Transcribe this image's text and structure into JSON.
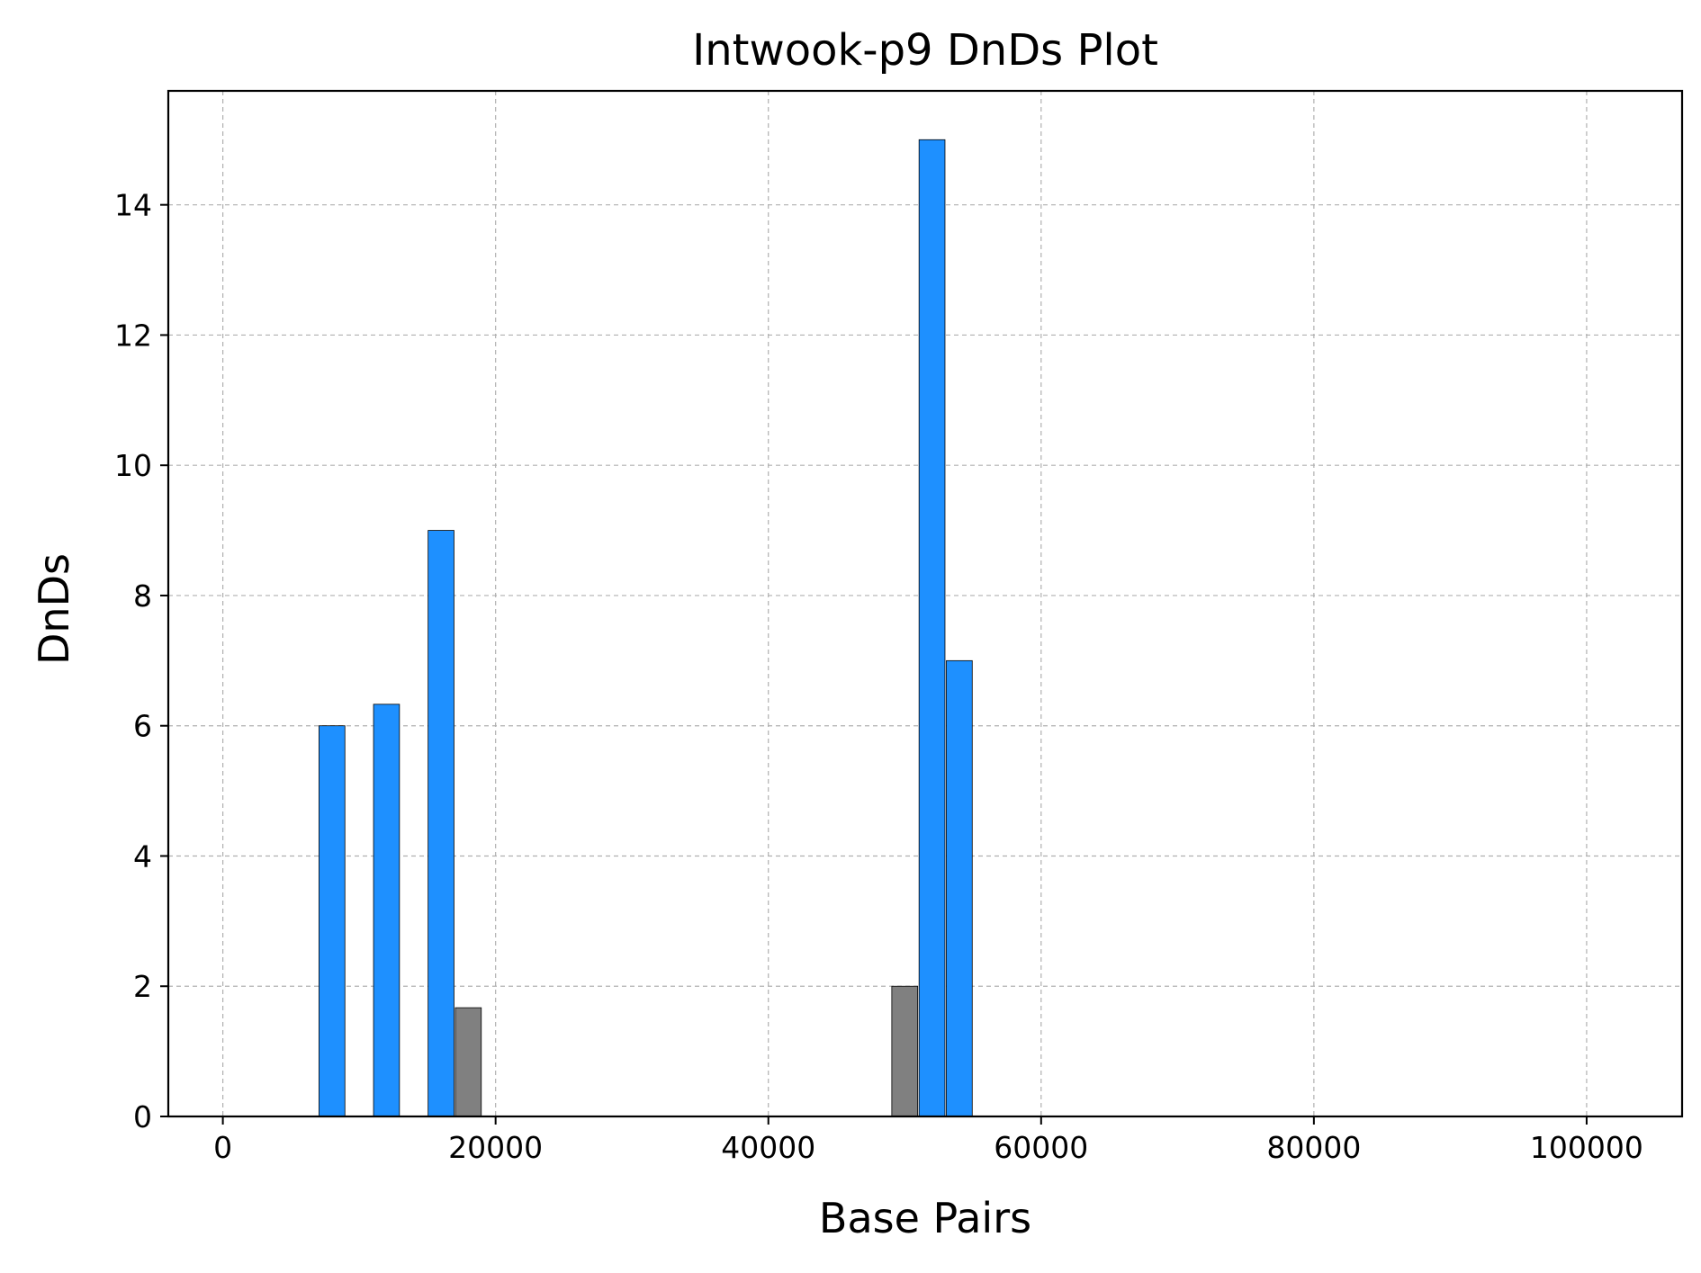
{
  "chart_data": {
    "type": "bar",
    "title": "Intwook-p9 DnDs Plot",
    "xlabel": "Base Pairs",
    "ylabel": "DnDs",
    "xlim": [
      -4000,
      107000
    ],
    "ylim": [
      0,
      15.75
    ],
    "xticks": [
      0,
      20000,
      40000,
      60000,
      80000,
      100000
    ],
    "xtick_labels": [
      "0",
      "20000",
      "40000",
      "60000",
      "80000",
      "100000"
    ],
    "yticks": [
      0,
      2,
      4,
      6,
      8,
      10,
      12,
      14
    ],
    "ytick_labels": [
      "0",
      "2",
      "4",
      "6",
      "8",
      "10",
      "12",
      "14"
    ],
    "grid": true,
    "bar_width": 1900,
    "series": [
      {
        "color": "#1e90ff",
        "points": [
          {
            "x": 8000,
            "y": 6.0
          },
          {
            "x": 12000,
            "y": 6.33
          },
          {
            "x": 16000,
            "y": 9.0
          },
          {
            "x": 52000,
            "y": 15.0
          },
          {
            "x": 54000,
            "y": 7.0
          }
        ]
      },
      {
        "color": "#808080",
        "points": [
          {
            "x": 18000,
            "y": 1.67
          },
          {
            "x": 50000,
            "y": 2.0
          }
        ]
      }
    ]
  }
}
